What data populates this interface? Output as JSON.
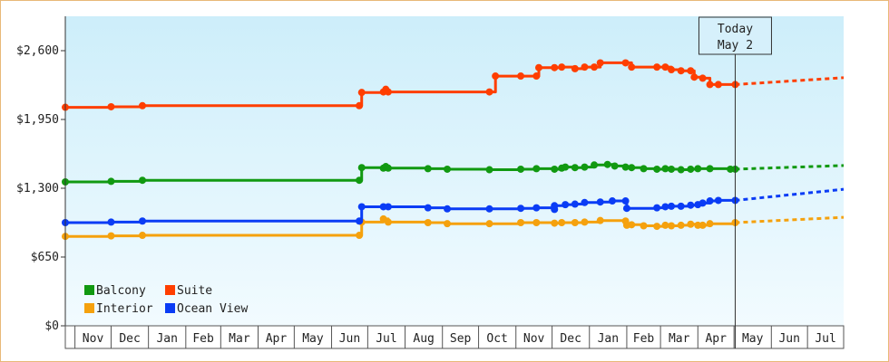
{
  "chart_data": {
    "type": "line",
    "title": "",
    "xlabel": "",
    "ylabel": "",
    "ylim": [
      0,
      2925
    ],
    "y_ticks": [
      0,
      650,
      1300,
      1950,
      2600
    ],
    "y_tick_labels": [
      "$0",
      "$650",
      "$1,300",
      "$1,950",
      "$2,600"
    ],
    "x_range": [
      "2023-10-24",
      "2025-07-31"
    ],
    "x_ticks": [
      "2023-11-01",
      "2023-12-01",
      "2024-01-01",
      "2024-02-01",
      "2024-03-01",
      "2024-04-01",
      "2024-05-01",
      "2024-06-01",
      "2024-07-01",
      "2024-08-01",
      "2024-09-01",
      "2024-10-01",
      "2024-11-01",
      "2024-12-01",
      "2025-01-01",
      "2025-02-01",
      "2025-03-01",
      "2025-04-01",
      "2025-05-01",
      "2025-06-01",
      "2025-07-01"
    ],
    "x_tick_labels": [
      "Nov",
      "Dec",
      "Jan",
      "Feb",
      "Mar",
      "Apr",
      "May",
      "Jun",
      "Jul",
      "Aug",
      "Sep",
      "Oct",
      "Nov",
      "Dec",
      "Jan",
      "Feb",
      "Mar",
      "Apr",
      "May",
      "Jun",
      "Jul"
    ],
    "today": {
      "date": "2025-05-02",
      "label_line1": "Today",
      "label_line2": "May 2"
    },
    "grid": false,
    "legend_position": "bottom-left",
    "series": [
      {
        "name": "Balcony",
        "color": "#119911",
        "points": [
          [
            "2023-10-24",
            1360
          ],
          [
            "2023-12-01",
            1365
          ],
          [
            "2023-12-27",
            1375
          ],
          [
            "2024-06-24",
            1375
          ],
          [
            "2024-06-26",
            1495
          ],
          [
            "2024-07-14",
            1490
          ],
          [
            "2024-07-16",
            1505
          ],
          [
            "2024-07-18",
            1490
          ],
          [
            "2024-08-20",
            1485
          ],
          [
            "2024-09-05",
            1480
          ],
          [
            "2024-10-10",
            1475
          ],
          [
            "2024-11-05",
            1480
          ],
          [
            "2024-11-18",
            1485
          ],
          [
            "2024-12-03",
            1480
          ],
          [
            "2024-12-09",
            1490
          ],
          [
            "2024-12-12",
            1500
          ],
          [
            "2024-12-20",
            1495
          ],
          [
            "2024-12-28",
            1500
          ],
          [
            "2025-01-05",
            1520
          ],
          [
            "2025-01-16",
            1525
          ],
          [
            "2025-01-22",
            1510
          ],
          [
            "2025-01-31",
            1500
          ],
          [
            "2025-02-05",
            1495
          ],
          [
            "2025-02-15",
            1485
          ],
          [
            "2025-02-26",
            1480
          ],
          [
            "2025-03-05",
            1485
          ],
          [
            "2025-03-10",
            1480
          ],
          [
            "2025-03-18",
            1475
          ],
          [
            "2025-03-26",
            1480
          ],
          [
            "2025-04-01",
            1485
          ],
          [
            "2025-04-11",
            1485
          ],
          [
            "2025-04-28",
            1480
          ],
          [
            "2025-05-02",
            1480
          ]
        ],
        "projection": [
          [
            "2025-05-02",
            1480
          ],
          [
            "2025-07-31",
            1515
          ]
        ]
      },
      {
        "name": "Suite",
        "color": "#ff3e00",
        "points": [
          [
            "2023-10-24",
            2065
          ],
          [
            "2023-12-01",
            2070
          ],
          [
            "2023-12-27",
            2080
          ],
          [
            "2024-06-24",
            2080
          ],
          [
            "2024-06-26",
            2205
          ],
          [
            "2024-07-14",
            2210
          ],
          [
            "2024-07-16",
            2235
          ],
          [
            "2024-07-18",
            2210
          ],
          [
            "2024-10-10",
            2210
          ],
          [
            "2024-10-15",
            2360
          ],
          [
            "2024-11-05",
            2360
          ],
          [
            "2024-11-18",
            2360
          ],
          [
            "2024-11-20",
            2440
          ],
          [
            "2024-12-03",
            2440
          ],
          [
            "2024-12-09",
            2445
          ],
          [
            "2024-12-20",
            2430
          ],
          [
            "2024-12-28",
            2445
          ],
          [
            "2025-01-05",
            2445
          ],
          [
            "2025-01-10",
            2485
          ],
          [
            "2025-01-31",
            2485
          ],
          [
            "2025-02-05",
            2445
          ],
          [
            "2025-02-26",
            2445
          ],
          [
            "2025-03-05",
            2445
          ],
          [
            "2025-03-10",
            2420
          ],
          [
            "2025-03-18",
            2410
          ],
          [
            "2025-03-26",
            2410
          ],
          [
            "2025-03-29",
            2350
          ],
          [
            "2025-04-05",
            2340
          ],
          [
            "2025-04-11",
            2280
          ],
          [
            "2025-04-18",
            2280
          ],
          [
            "2025-05-02",
            2280
          ]
        ],
        "projection": [
          [
            "2025-05-02",
            2280
          ],
          [
            "2025-07-31",
            2345
          ]
        ]
      },
      {
        "name": "Interior",
        "color": "#f5a10d",
        "points": [
          [
            "2023-10-24",
            845
          ],
          [
            "2023-12-01",
            850
          ],
          [
            "2023-12-27",
            855
          ],
          [
            "2024-06-24",
            855
          ],
          [
            "2024-06-26",
            980
          ],
          [
            "2024-07-14",
            1010
          ],
          [
            "2024-07-18",
            980
          ],
          [
            "2024-08-20",
            975
          ],
          [
            "2024-09-05",
            965
          ],
          [
            "2024-10-10",
            965
          ],
          [
            "2024-11-05",
            975
          ],
          [
            "2024-11-18",
            975
          ],
          [
            "2024-12-03",
            970
          ],
          [
            "2024-12-09",
            975
          ],
          [
            "2024-12-20",
            975
          ],
          [
            "2024-12-28",
            980
          ],
          [
            "2025-01-10",
            995
          ],
          [
            "2025-01-31",
            990
          ],
          [
            "2025-02-01",
            950
          ],
          [
            "2025-02-05",
            955
          ],
          [
            "2025-02-15",
            945
          ],
          [
            "2025-02-26",
            940
          ],
          [
            "2025-03-05",
            950
          ],
          [
            "2025-03-10",
            945
          ],
          [
            "2025-03-18",
            950
          ],
          [
            "2025-03-26",
            960
          ],
          [
            "2025-04-01",
            950
          ],
          [
            "2025-04-05",
            950
          ],
          [
            "2025-04-11",
            965
          ],
          [
            "2025-05-02",
            975
          ]
        ],
        "projection": [
          [
            "2025-05-02",
            975
          ],
          [
            "2025-07-31",
            1025
          ]
        ]
      },
      {
        "name": "Ocean View",
        "color": "#0a3cf5",
        "points": [
          [
            "2023-10-24",
            975
          ],
          [
            "2023-12-01",
            980
          ],
          [
            "2023-12-27",
            990
          ],
          [
            "2024-06-24",
            990
          ],
          [
            "2024-06-26",
            1125
          ],
          [
            "2024-07-14",
            1125
          ],
          [
            "2024-07-18",
            1125
          ],
          [
            "2024-08-20",
            1115
          ],
          [
            "2024-09-05",
            1105
          ],
          [
            "2024-10-10",
            1105
          ],
          [
            "2024-11-05",
            1110
          ],
          [
            "2024-11-18",
            1115
          ],
          [
            "2024-12-03",
            1100
          ],
          [
            "2024-12-03",
            1135
          ],
          [
            "2024-12-12",
            1145
          ],
          [
            "2024-12-20",
            1150
          ],
          [
            "2024-12-28",
            1165
          ],
          [
            "2025-01-10",
            1170
          ],
          [
            "2025-01-20",
            1180
          ],
          [
            "2025-01-31",
            1180
          ],
          [
            "2025-02-01",
            1110
          ],
          [
            "2025-02-26",
            1115
          ],
          [
            "2025-03-05",
            1125
          ],
          [
            "2025-03-10",
            1130
          ],
          [
            "2025-03-18",
            1130
          ],
          [
            "2025-03-26",
            1140
          ],
          [
            "2025-04-01",
            1145
          ],
          [
            "2025-04-05",
            1160
          ],
          [
            "2025-04-11",
            1180
          ],
          [
            "2025-04-18",
            1185
          ],
          [
            "2025-05-02",
            1185
          ]
        ],
        "projection": [
          [
            "2025-05-02",
            1185
          ],
          [
            "2025-07-31",
            1290
          ]
        ]
      }
    ]
  }
}
